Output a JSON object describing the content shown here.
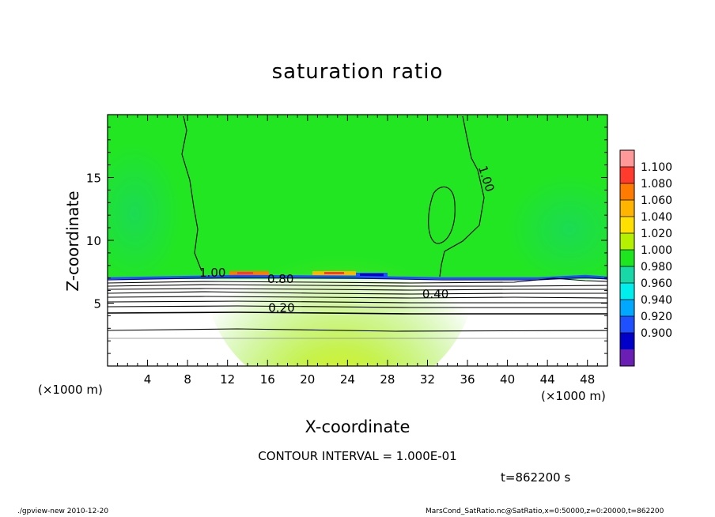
{
  "chart_data": {
    "type": "heatmap",
    "title": "saturation ratio",
    "xlabel": "X-coordinate",
    "ylabel": "Z-coordinate",
    "x_unit": "(×1000 m)",
    "x_unit_right": "(×1000 m)",
    "xlim": [
      0,
      50
    ],
    "ylim": [
      0,
      20
    ],
    "x_ticks": [
      4,
      8,
      12,
      16,
      20,
      24,
      28,
      32,
      36,
      40,
      44,
      48
    ],
    "y_ticks": [
      5,
      10,
      15
    ],
    "colorbar": {
      "levels": [
        "1.100",
        "1.080",
        "1.060",
        "1.040",
        "1.020",
        "1.000",
        "0.980",
        "0.960",
        "0.940",
        "0.920",
        "0.900"
      ],
      "colors": [
        "#ff9999",
        "#ff3b2e",
        "#ff7a00",
        "#ffb400",
        "#ffe000",
        "#b4f000",
        "#1ee61e",
        "#18d8a8",
        "#00eeee",
        "#00a8ff",
        "#1e50ff",
        "#0000c8",
        "#6a1eb4"
      ]
    },
    "contour_labels": [
      {
        "text": "1.00",
        "x": 10.5,
        "z": 7.1
      },
      {
        "text": "1.00",
        "x": 37.5,
        "z": 14.8
      },
      {
        "text": "0.80",
        "x": 17.3,
        "z": 6.6
      },
      {
        "text": "0.40",
        "x": 32.8,
        "z": 5.4
      },
      {
        "text": "0.20",
        "x": 17.4,
        "z": 4.3
      }
    ],
    "contour_interval_text": "CONTOUR INTERVAL = 1.000E-01",
    "time_text": "t=862200 s"
  },
  "footer": {
    "left": "./gpview-new   2010-12-20",
    "right": "MarsCond_SatRatio.nc@SatRatio,x=0:50000,z=0:20000,t=862200"
  }
}
